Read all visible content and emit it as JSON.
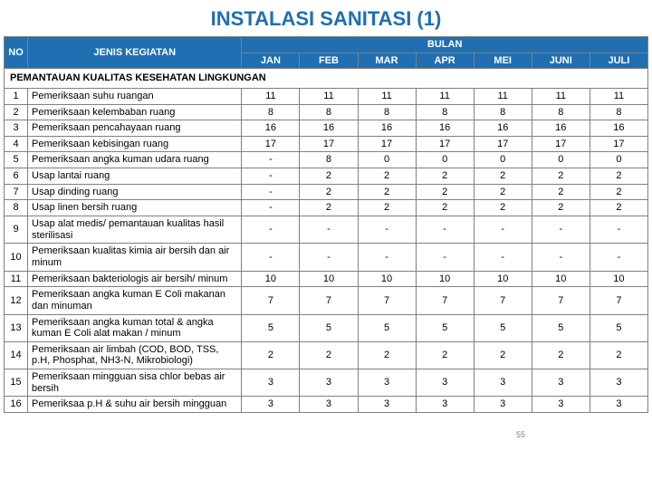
{
  "title": "INSTALASI SANITASI (1)",
  "header": {
    "no": "NO",
    "kegiatan": "JENIS KEGIATAN",
    "bulan": "BULAN",
    "months": [
      "JAN",
      "FEB",
      "MAR",
      "APR",
      "MEI",
      "JUNI",
      "JULI"
    ]
  },
  "section": "PEMANTAUAN KUALITAS KESEHATAN LINGKUNGAN",
  "rows": [
    {
      "no": "1",
      "keg": "Pemeriksaan suhu ruangan",
      "v": [
        "11",
        "11",
        "11",
        "11",
        "11",
        "11",
        "11"
      ]
    },
    {
      "no": "2",
      "keg": "Pemeriksaan kelembaban ruang",
      "v": [
        "8",
        "8",
        "8",
        "8",
        "8",
        "8",
        "8"
      ]
    },
    {
      "no": "3",
      "keg": "Pemeriksaan pencahayaan ruang",
      "v": [
        "16",
        "16",
        "16",
        "16",
        "16",
        "16",
        "16"
      ]
    },
    {
      "no": "4",
      "keg": "Pemeriksaan kebisingan ruang",
      "v": [
        "17",
        "17",
        "17",
        "17",
        "17",
        "17",
        "17"
      ]
    },
    {
      "no": "5",
      "keg": "Pemeriksaan angka kuman udara ruang",
      "v": [
        "-",
        "8",
        "0",
        "0",
        "0",
        "0",
        "0"
      ]
    },
    {
      "no": "6",
      "keg": "Usap lantai ruang",
      "v": [
        "-",
        "2",
        "2",
        "2",
        "2",
        "2",
        "2"
      ]
    },
    {
      "no": "7",
      "keg": "Usap dinding ruang",
      "v": [
        "-",
        "2",
        "2",
        "2",
        "2",
        "2",
        "2"
      ]
    },
    {
      "no": "8",
      "keg": "Usap linen bersih ruang",
      "v": [
        "-",
        "2",
        "2",
        "2",
        "2",
        "2",
        "2"
      ]
    },
    {
      "no": "9",
      "keg": "Usap alat medis/ pemantauan kualitas hasil sterilisasi",
      "v": [
        "-",
        "-",
        "-",
        "-",
        "-",
        "-",
        "-"
      ]
    },
    {
      "no": "10",
      "keg": "Pemeriksaan kualitas kimia air bersih dan air minum",
      "v": [
        "-",
        "-",
        "-",
        "-",
        "-",
        "-",
        "-"
      ]
    },
    {
      "no": "11",
      "keg": "Pemeriksaan bakteriologis air bersih/ minum",
      "v": [
        "10",
        "10",
        "10",
        "10",
        "10",
        "10",
        "10"
      ]
    },
    {
      "no": "12",
      "keg": "Pemeriksaan angka kuman E Coli makanan dan minuman",
      "v": [
        "7",
        "7",
        "7",
        "7",
        "7",
        "7",
        "7"
      ]
    },
    {
      "no": "13",
      "keg": "Pemeriksaan angka kuman total & angka kuman E Coli alat makan / minum",
      "v": [
        "5",
        "5",
        "5",
        "5",
        "5",
        "5",
        "5"
      ]
    },
    {
      "no": "14",
      "keg": "Pemeriksaan air limbah (COD, BOD, TSS, p.H, Phosphat, NH3-N, Mikrobiologi)",
      "v": [
        "2",
        "2",
        "2",
        "2",
        "2",
        "2",
        "2"
      ]
    },
    {
      "no": "15",
      "keg": "Pemeriksaan mingguan sisa chlor bebas air bersih",
      "v": [
        "3",
        "3",
        "3",
        "3",
        "3",
        "3",
        "3"
      ]
    },
    {
      "no": "16",
      "keg": "Pemeriksaa p.H & suhu air bersih mingguan",
      "v": [
        "3",
        "3",
        "3",
        "3",
        "3",
        "3",
        "3"
      ]
    }
  ],
  "page_num": "55",
  "colors": {
    "header_bg": "#1f6fb2",
    "header_fg": "#ffffff",
    "border": "#808080",
    "title": "#1f6fb2"
  }
}
